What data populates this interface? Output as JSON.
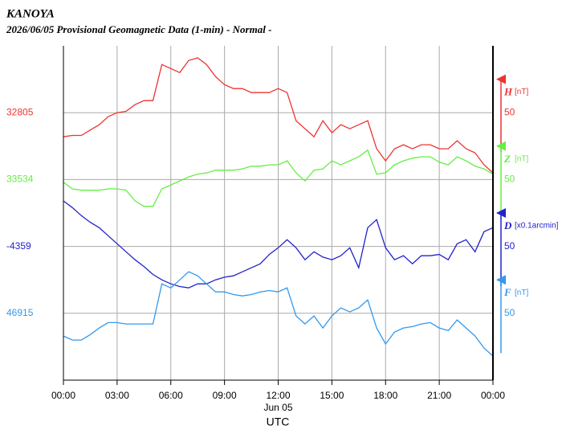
{
  "chart_data": {
    "type": "line",
    "title": "KANOYA",
    "subtitle": "2026/06/05  Provisional Geomagnetic Data (1-min)  - Normal -",
    "xlabel": "UTC",
    "date_label": "Jun 05",
    "xlim": [
      0,
      24
    ],
    "xticks": [
      {
        "value": 0,
        "label": "00:00"
      },
      {
        "value": 3,
        "label": "03:00"
      },
      {
        "value": 6,
        "label": "06:00"
      },
      {
        "value": 9,
        "label": "09:00"
      },
      {
        "value": 12,
        "label": "12:00"
      },
      {
        "value": 15,
        "label": "15:00"
      },
      {
        "value": 18,
        "label": "18:00"
      },
      {
        "value": 21,
        "label": "21:00"
      },
      {
        "value": 24,
        "label": "00:00"
      }
    ],
    "grid": true,
    "x": [
      0,
      0.5,
      1,
      1.5,
      2,
      2.5,
      3,
      3.5,
      4,
      4.5,
      5,
      5.5,
      6,
      6.5,
      7,
      7.5,
      8,
      8.5,
      9,
      9.5,
      10,
      10.5,
      11,
      11.5,
      12,
      12.5,
      13,
      13.5,
      14,
      14.5,
      15,
      15.5,
      16,
      16.5,
      17,
      17.5,
      18,
      18.5,
      19,
      19.5,
      20,
      20.5,
      21,
      21.5,
      22,
      22.5,
      23,
      23.5,
      24
    ],
    "series": [
      {
        "name": "H",
        "unit": "[nT]",
        "color": "#ee3333",
        "ylim": [
          32605,
          32855
        ],
        "yticks": [
          32805
        ],
        "scale": 50,
        "values": [
          32787,
          32788,
          32788,
          32792,
          32796,
          32802,
          32805,
          32806,
          32811,
          32814,
          32814,
          32841,
          32838,
          32835,
          32844,
          32846,
          32841,
          32832,
          32826,
          32823,
          32823,
          32820,
          32820,
          32820,
          32823,
          32820,
          32799,
          32793,
          32787,
          32799,
          32790,
          32796,
          32793,
          32796,
          32799,
          32778,
          32769,
          32778,
          32781,
          32778,
          32781,
          32781,
          32778,
          32778,
          32784,
          32778,
          32775,
          32766,
          32760
        ]
      },
      {
        "name": "Z",
        "unit": "[nT]",
        "color": "#66ee44",
        "ylim": [
          33384,
          33634
        ],
        "yticks": [
          33534
        ],
        "scale": 50,
        "values": [
          33532,
          33527,
          33526,
          33526,
          33526,
          33527,
          33527,
          33526,
          33518,
          33514,
          33514,
          33527,
          33530,
          33533,
          33536,
          33538,
          33539,
          33541,
          33541,
          33541,
          33542,
          33544,
          33544,
          33545,
          33545,
          33548,
          33539,
          33533,
          33541,
          33542,
          33548,
          33545,
          33548,
          33551,
          33556,
          33538,
          33539,
          33545,
          33548,
          33550,
          33551,
          33551,
          33547,
          33545,
          33551,
          33548,
          33544,
          33542,
          33538
        ]
      },
      {
        "name": "D",
        "unit": "[x0.1arcmin]",
        "color": "#2222cc",
        "ylim": [
          -4459,
          -4209
        ],
        "yticks": [
          -4359
        ],
        "scale": 50,
        "values": [
          -4325,
          -4330,
          -4336,
          -4341,
          -4345,
          -4351,
          -4357,
          -4363,
          -4369,
          -4374,
          -4380,
          -4384,
          -4387,
          -4389,
          -4390,
          -4387,
          -4387,
          -4384,
          -4382,
          -4381,
          -4378,
          -4375,
          -4372,
          -4365,
          -4360,
          -4354,
          -4360,
          -4369,
          -4363,
          -4367,
          -4369,
          -4366,
          -4360,
          -4375,
          -4345,
          -4339,
          -4360,
          -4369,
          -4366,
          -4372,
          -4366,
          -4366,
          -4365,
          -4369,
          -4357,
          -4354,
          -4363,
          -4348,
          -4345
        ]
      },
      {
        "name": "F",
        "unit": "[nT]",
        "color": "#3399ee",
        "ylim": [
          46865,
          47115
        ],
        "yticks": [
          46915
        ],
        "scale": 50,
        "values": [
          46898,
          46895,
          46895,
          46899,
          46904,
          46908,
          46908,
          46907,
          46907,
          46907,
          46907,
          46937,
          46934,
          46940,
          46946,
          46943,
          46937,
          46931,
          46931,
          46929,
          46928,
          46929,
          46931,
          46932,
          46931,
          46934,
          46913,
          46907,
          46913,
          46904,
          46913,
          46919,
          46916,
          46919,
          46925,
          46904,
          46892,
          46901,
          46904,
          46905,
          46907,
          46908,
          46904,
          46902,
          46910,
          46904,
          46898,
          46889,
          46883
        ]
      }
    ]
  }
}
